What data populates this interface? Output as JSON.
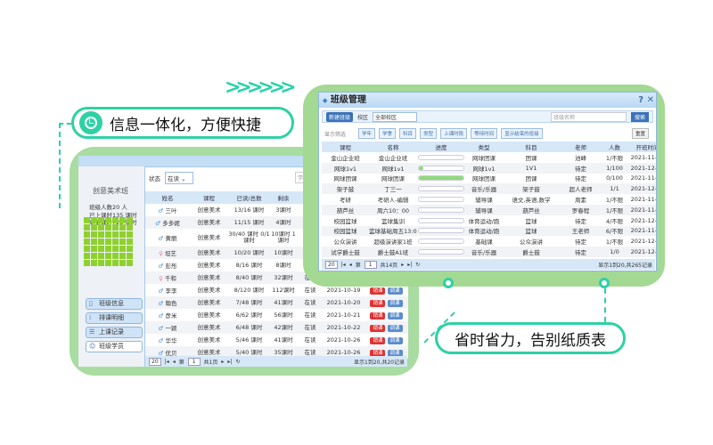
{
  "slogans": {
    "top": "信息一体化，方便快捷",
    "bottom": "省时省力，告别纸质表",
    "chevrons": ">>>>>>"
  },
  "colors": {
    "accent": "#2ed1a5",
    "card": "#a9dca0",
    "grid": "#8ed12f"
  },
  "left": {
    "class_title": "创意美术班",
    "stats": [
      {
        "label": "班级人数",
        "value": "20 人"
      },
      {
        "label": "已上课时",
        "value": "135 课时"
      },
      {
        "label": "剩余课时",
        "value": "725 课时"
      }
    ],
    "nav": [
      {
        "label": "班级信息",
        "icon": "info-icon"
      },
      {
        "label": "排课明细",
        "icon": "schedule-icon"
      },
      {
        "label": "上课记录",
        "icon": "list-icon"
      },
      {
        "label": "班级学员",
        "icon": "students-icon",
        "active": true
      }
    ],
    "filter_label": "状态",
    "filter_value": "在读",
    "search_placeholder": "学生名称",
    "headers": [
      "姓名",
      "课程",
      "已读/总数",
      "剩余",
      "状态"
    ],
    "rows": [
      {
        "name": "三叶",
        "gender": "m",
        "course": "创意美术",
        "used": "13/16 课时",
        "left": "3课时",
        "status": "在读",
        "date": ""
      },
      {
        "name": "多多妮",
        "gender": "m",
        "course": "创意美术",
        "used": "11/15 课时",
        "left": "4课时",
        "status": "在读",
        "date": ""
      },
      {
        "name": "黄丽",
        "gender": "m",
        "course": "创意美术",
        "used": "30/40 课时 0/1 课时",
        "left": "10课时 1课时",
        "status": "在读",
        "date": ""
      },
      {
        "name": "坦艺",
        "gender": "f",
        "course": "创意美术",
        "used": "10/20 课时",
        "left": "10课时",
        "status": "在读",
        "date": ""
      },
      {
        "name": "彭彤",
        "gender": "m",
        "course": "创意美术",
        "used": "8/16 课时",
        "left": "8课时",
        "status": "在读",
        "date": ""
      },
      {
        "name": "千和",
        "gender": "f",
        "course": "创意美术",
        "used": "8/40 课时",
        "left": "32课时",
        "status": "在读",
        "date": ""
      },
      {
        "name": "李李",
        "gender": "m",
        "course": "创意美术",
        "used": "8/120 课时",
        "left": "112课时",
        "status": "在读",
        "date": "2021-10-19"
      },
      {
        "name": "翰色",
        "gender": "m",
        "course": "创意美术",
        "used": "7/48 课时",
        "left": "41课时",
        "status": "在读",
        "date": "2021-10-20"
      },
      {
        "name": "彦米",
        "gender": "m",
        "course": "创意美术",
        "used": "6/62 课时",
        "left": "56课时",
        "status": "在读",
        "date": "2021-10-21"
      },
      {
        "name": "一颖",
        "gender": "m",
        "course": "创意美术",
        "used": "6/48 课时",
        "left": "42课时",
        "status": "在读",
        "date": "2021-10-22"
      },
      {
        "name": "华华",
        "gender": "m",
        "course": "创意美术",
        "used": "5/46 课时",
        "left": "41课时",
        "status": "在读",
        "date": "2021-10-26"
      },
      {
        "name": "优贝",
        "gender": "m",
        "course": "创意美术",
        "used": "5/40 课时",
        "left": "35课时",
        "status": "在读",
        "date": "2021-10-26"
      }
    ],
    "btn_a": "销课",
    "btn_b": "调课",
    "pager": {
      "size": "20",
      "page_prefix": "第",
      "page": "1",
      "total": "共1页",
      "info": "显示1到20,共20记录"
    }
  },
  "right": {
    "title": "班级管理",
    "new_btn": "新建班级",
    "campus_label": "校区",
    "campus_value": "全部校区",
    "search_placeholder": "班级名称",
    "search_btn": "搜索",
    "filter_label": "显示筛选",
    "filters": [
      "学年",
      "学季",
      "科目",
      "类型",
      "上课时段",
      "等待时间",
      "显示结束的班级"
    ],
    "reset": "重置",
    "headers": [
      "课程",
      "名称",
      "进度",
      "类型",
      "科目",
      "老师",
      "人数",
      "开班时间"
    ],
    "rows": [
      {
        "course": "金山企业班",
        "name": "金山企业班",
        "progress": 0,
        "type": "网球团课",
        "subject": "团课",
        "teacher": "池峰",
        "count": "1/不限",
        "date": "2021-11-30"
      },
      {
        "course": "网球1v1",
        "name": "网球1v1",
        "progress": 0.1,
        "type": "网球1v1",
        "subject": "1V1",
        "teacher": "待定",
        "count": "1/100",
        "date": "2021-12-01"
      },
      {
        "course": "网球团课",
        "name": "网球团课",
        "progress": 1,
        "type": "网球团课",
        "subject": "团课",
        "teacher": "待定",
        "count": "0/100",
        "date": "2021-11-30"
      },
      {
        "course": "架子鼓",
        "name": "丁三一",
        "progress": 0,
        "type": "音乐/乐器",
        "subject": "架子鼓",
        "teacher": "超人老师",
        "count": "1/1",
        "date": "2021-12-04"
      },
      {
        "course": "考研",
        "name": "考研人-编辑",
        "progress": 0,
        "type": "辅导课",
        "subject": "语文,英语,数学",
        "teacher": "周素",
        "count": "1/不限",
        "date": "2021-11-03"
      },
      {
        "course": "葫芦丝",
        "name": "周六10：00",
        "progress": 0,
        "type": "辅导课",
        "subject": "葫芦丝",
        "teacher": "罗春程",
        "count": "1/不限",
        "date": "2021-11-06"
      },
      {
        "course": "校园篮球",
        "name": "篮球集训",
        "progress": 0,
        "type": "体育运动/跑",
        "subject": "篮球",
        "teacher": "待定",
        "count": "4/不限",
        "date": "2021-12-01"
      },
      {
        "course": "校园篮球",
        "name": "篮球基础周五13:00~2",
        "progress": 0,
        "type": "体育运动/跑",
        "subject": "篮球",
        "teacher": "王老师",
        "count": "6/不限",
        "date": "2021-11-19"
      },
      {
        "course": "公众演讲",
        "name": "超级演讲家1班",
        "progress": 0,
        "type": "基础课",
        "subject": "公众演讲",
        "teacher": "待定",
        "count": "1/不限",
        "date": "2021-12-03"
      },
      {
        "course": "试学爵士鼓",
        "name": "爵士鼓A1班",
        "progress": 0,
        "type": "音乐/乐器",
        "subject": "爵士鼓",
        "teacher": "待定",
        "count": "1/0",
        "date": "2021-12-01"
      }
    ],
    "pager": {
      "size": "20",
      "page_prefix": "第",
      "page": "1",
      "total": "共14页",
      "info": "显示1到20,共265记录"
    }
  }
}
